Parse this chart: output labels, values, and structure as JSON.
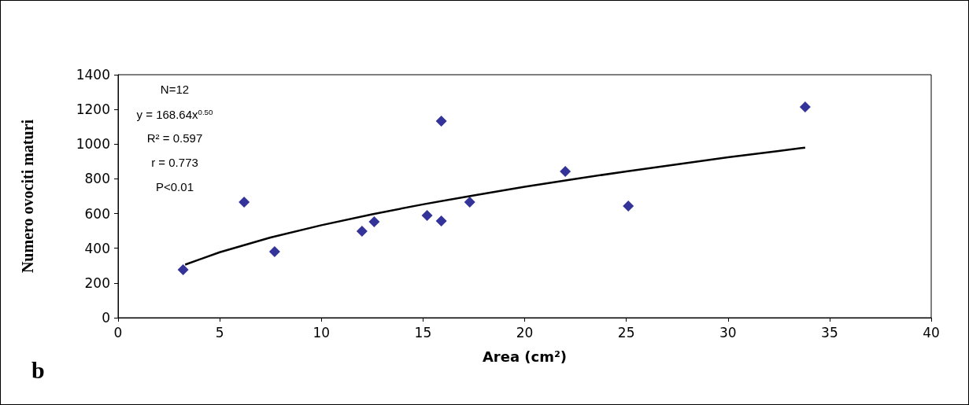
{
  "chart_data": {
    "type": "scatter",
    "xlabel": "Area (cm²)",
    "ylabel": "Numero ovociti maturi",
    "annotations": [
      "N=12",
      "y = 168.64x$^{0.50}$",
      "R² = 0.597",
      "r = 0.773",
      "P<0.01",
      "b"
    ],
    "xlim": [
      0,
      40
    ],
    "xticks": [
      0,
      5,
      10,
      15,
      20,
      25,
      30,
      35,
      40
    ],
    "ylim": [
      0,
      1400
    ],
    "yticks": [
      0,
      200,
      400,
      600,
      800,
      1000,
      1200,
      1400
    ],
    "grid": false,
    "marker": "diamond",
    "series": [
      {
        "color": "#000080",
        "x": [
          3.2,
          6.2,
          7.7,
          12.0,
          12.6,
          15.2,
          15.9,
          15.9,
          17.3,
          22.0,
          25.1,
          33.8
        ],
        "values": [
          276,
          666,
          381,
          498,
          553,
          589,
          1133,
          557,
          666,
          843,
          643,
          1214
        ]
      },
      {
        "type": "line",
        "color": "#000000",
        "marker": "none",
        "line_style": "solid",
        "x": [
          3.3,
          5,
          7.5,
          10,
          12.5,
          15,
          17.5,
          20,
          22.5,
          25,
          27.5,
          30,
          32.5,
          33.8
        ],
        "values": [
          306,
          377,
          462,
          533,
          596,
          653,
          705,
          754,
          800,
          843,
          884,
          924,
          961,
          980
        ]
      }
    ]
  }
}
